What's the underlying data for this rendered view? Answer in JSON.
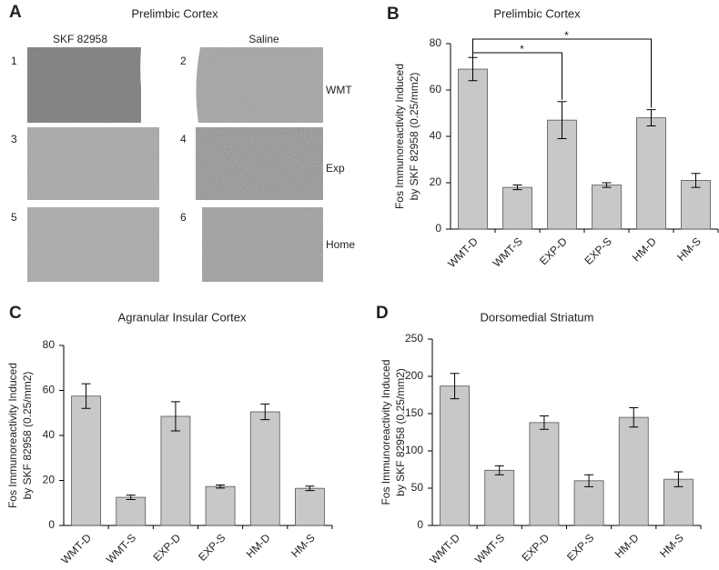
{
  "micrographs": {
    "label": "A",
    "title": "Prelimbic Cortex",
    "columns": [
      "SKF 82958",
      "Saline"
    ],
    "numbers": [
      "1",
      "2",
      "3",
      "4",
      "5",
      "6"
    ],
    "rows": [
      "WMT",
      "Exp",
      "Home"
    ]
  },
  "chart_data": [
    {
      "type": "bar",
      "label": "B",
      "title": "Prelimbic Cortex",
      "ylabel": [
        "Fos Immunoreactivity Induced",
        "by SKF 82958 (0.25/mm2)"
      ],
      "categories": [
        "WMT-D",
        "WMT-S",
        "EXP-D",
        "EXP-S",
        "HM-D",
        "HM-S"
      ],
      "values": [
        69,
        18,
        47,
        19,
        48,
        21
      ],
      "errors": [
        5,
        1,
        8,
        1,
        3.5,
        3
      ],
      "color": "#c8c8c8",
      "ylim": [
        0,
        80
      ],
      "yticks": [
        0,
        20,
        40,
        60,
        80
      ],
      "significance": [
        {
          "label": "*",
          "from": 0,
          "to": 2
        },
        {
          "label": "*",
          "from": 0,
          "to": 4
        }
      ]
    },
    {
      "type": "bar",
      "label": "C",
      "title": "Agranular Insular Cortex",
      "ylabel": [
        "Fos Immunoreactivity Induced",
        "by SKF 82958 (0.25/mm2)"
      ],
      "categories": [
        "WMT-D",
        "WMT-S",
        "EXP-D",
        "EXP-S",
        "HM-D",
        "HM-S"
      ],
      "values": [
        57.5,
        12.5,
        48.5,
        17.3,
        50.5,
        16.5
      ],
      "errors": [
        5.5,
        1,
        6.5,
        0.7,
        3.5,
        1
      ],
      "color": "#c8c8c8",
      "ylim": [
        0,
        80
      ],
      "yticks": [
        0,
        20,
        40,
        60,
        80
      ]
    },
    {
      "type": "bar",
      "label": "D",
      "title": "Dorsomedial Striatum",
      "ylabel": [
        "Fos Immunoreactivity Induced",
        "by SKF 82958 (0.25/mm2)"
      ],
      "categories": [
        "WMT-D",
        "WMT-S",
        "EXP-D",
        "EXP-S",
        "HM-D",
        "HM-S"
      ],
      "values": [
        187,
        74,
        138,
        60,
        145,
        62
      ],
      "errors": [
        17,
        6,
        9,
        8,
        13,
        10
      ],
      "color": "#c8c8c8",
      "ylim": [
        0,
        250
      ],
      "yticks": [
        0,
        50,
        100,
        150,
        200,
        250
      ]
    }
  ]
}
